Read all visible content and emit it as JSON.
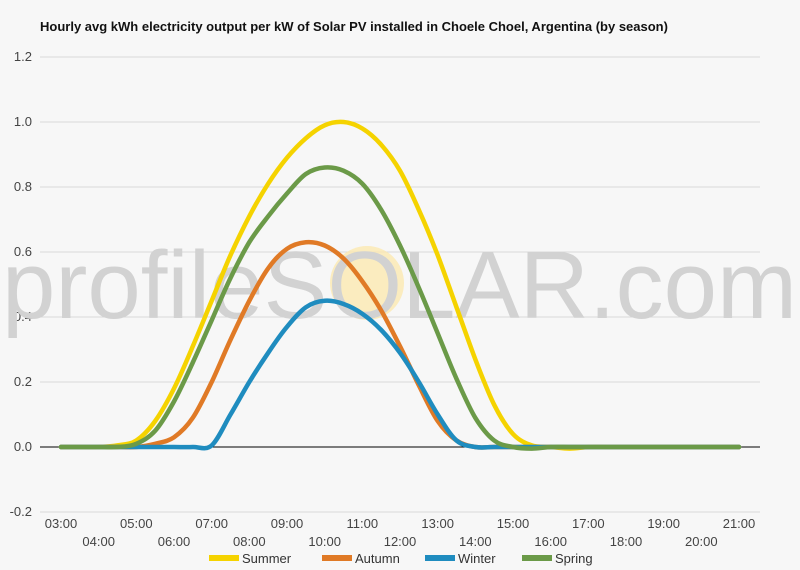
{
  "chart_data": {
    "type": "line",
    "title": "Hourly avg kWh electricity output per kW of Solar PV installed in Choele Choel, Argentina (by season)",
    "xlabel": "",
    "ylabel": "",
    "x": [
      "03:00",
      "03:30",
      "04:00",
      "04:30",
      "05:00",
      "05:30",
      "06:00",
      "06:30",
      "07:00",
      "07:30",
      "08:00",
      "08:30",
      "09:00",
      "09:30",
      "10:00",
      "10:30",
      "11:00",
      "11:30",
      "12:00",
      "12:30",
      "13:00",
      "13:30",
      "14:00",
      "14:30",
      "15:00",
      "15:30",
      "16:00",
      "16:30",
      "17:00",
      "17:30",
      "18:00",
      "18:30",
      "19:00",
      "19:30",
      "20:00",
      "20:30",
      "21:00"
    ],
    "xticks_upper": [
      "03:00",
      "05:00",
      "07:00",
      "09:00",
      "11:00",
      "13:00",
      "15:00",
      "17:00",
      "19:00",
      "21:00"
    ],
    "xticks_lower": [
      "04:00",
      "06:00",
      "08:00",
      "10:00",
      "12:00",
      "14:00",
      "16:00",
      "18:00",
      "20:00"
    ],
    "yticks": [
      "-0.2",
      "0.0",
      "0.2",
      "0.4",
      "0.6",
      "0.8",
      "1.0",
      "1.2"
    ],
    "ylim": [
      -0.2,
      1.2
    ],
    "grid": true,
    "legend_position": "bottom",
    "series": [
      {
        "name": "Summer",
        "color": "#f5d300",
        "values": [
          0,
          0,
          0,
          0.005,
          0.02,
          0.08,
          0.18,
          0.31,
          0.45,
          0.59,
          0.71,
          0.81,
          0.89,
          0.95,
          0.99,
          1.0,
          0.98,
          0.93,
          0.85,
          0.73,
          0.59,
          0.43,
          0.27,
          0.13,
          0.04,
          0.005,
          0,
          -0.005,
          0,
          0,
          0,
          0,
          0,
          0,
          0,
          0,
          0
        ]
      },
      {
        "name": "Autumn",
        "color": "#e07a26",
        "values": [
          0,
          0,
          0,
          0,
          0,
          0.01,
          0.03,
          0.09,
          0.2,
          0.33,
          0.45,
          0.55,
          0.61,
          0.63,
          0.62,
          0.58,
          0.51,
          0.42,
          0.31,
          0.19,
          0.08,
          0.02,
          0,
          0,
          0,
          0,
          0,
          0,
          0,
          0,
          0,
          0,
          0,
          0,
          0,
          0,
          0
        ]
      },
      {
        "name": "Winter",
        "color": "#1f8cbf",
        "values": [
          0,
          0,
          0,
          0,
          0,
          0,
          0,
          0,
          0.005,
          0.1,
          0.2,
          0.29,
          0.37,
          0.43,
          0.45,
          0.44,
          0.41,
          0.36,
          0.29,
          0.2,
          0.1,
          0.02,
          0,
          0,
          0,
          0,
          0,
          0,
          0,
          0,
          0,
          0,
          0,
          0,
          0,
          0,
          0
        ]
      },
      {
        "name": "Spring",
        "color": "#6b9a48",
        "values": [
          0,
          0,
          0,
          0,
          0.01,
          0.05,
          0.14,
          0.26,
          0.39,
          0.52,
          0.63,
          0.71,
          0.78,
          0.84,
          0.86,
          0.85,
          0.81,
          0.73,
          0.62,
          0.49,
          0.35,
          0.21,
          0.09,
          0.02,
          0,
          -0.005,
          0,
          0,
          0,
          0,
          0,
          0,
          0,
          0,
          0,
          0,
          0
        ]
      }
    ],
    "watermark": "profileSOLAR.com"
  }
}
